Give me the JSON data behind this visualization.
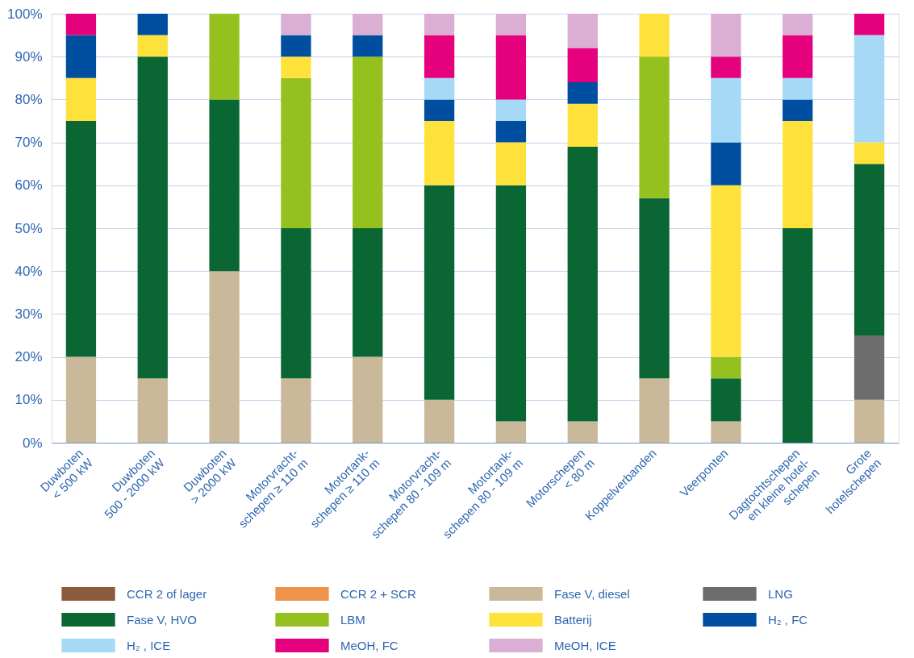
{
  "chart_data": {
    "type": "bar",
    "stacked": true,
    "categories": [
      "Duwboten\n< 500 kW",
      "Duwboten\n500 - 2000 kW",
      "Duwboten\n> 2000 kW",
      "Motorvracht-\nschepen ≥ 110 m",
      "Motortank-\nschepen ≥ 110 m",
      "Motorvracht-\nschepen 80 - 109 m",
      "Motortank-\nschepen 80 - 109 m",
      "Motorschepen\n< 80 m",
      "Koppelverbanden",
      "Veerponten",
      "Dagtochtschepen\nen kleine hotel-\nschepen",
      "Grote\nhotelschepen"
    ],
    "series": [
      {
        "name": "CCR 2 of lager",
        "color": "#8c5a3c",
        "values": [
          0,
          0,
          0,
          0,
          0,
          0,
          0,
          0,
          0,
          0,
          0,
          0
        ]
      },
      {
        "name": "CCR 2 + SCR",
        "color": "#f0944c",
        "values": [
          0,
          0,
          0,
          0,
          0,
          0,
          0,
          0,
          0,
          0,
          0,
          0
        ]
      },
      {
        "name": "Fase V, diesel",
        "color": "#c9b99a",
        "values": [
          20,
          15,
          40,
          15,
          20,
          10,
          5,
          5,
          15,
          5,
          0,
          10
        ]
      },
      {
        "name": "LNG",
        "color": "#6d6d6d",
        "values": [
          0,
          0,
          0,
          0,
          0,
          0,
          0,
          0,
          0,
          0,
          0,
          15
        ]
      },
      {
        "name": "Fase V, HVO",
        "color": "#0a6633",
        "values": [
          55,
          75,
          40,
          35,
          30,
          50,
          55,
          64,
          42,
          10,
          50,
          40
        ]
      },
      {
        "name": "LBM",
        "color": "#95c11f",
        "values": [
          0,
          0,
          20,
          35,
          40,
          0,
          0,
          0,
          33,
          5,
          0,
          0
        ]
      },
      {
        "name": "Batterij",
        "color": "#ffe13c",
        "values": [
          10,
          5,
          0,
          5,
          0,
          15,
          10,
          10,
          10,
          40,
          25,
          5
        ]
      },
      {
        "name": "H₂ , FC",
        "color": "#004ea0",
        "values": [
          10,
          5,
          0,
          5,
          5,
          5,
          5,
          5,
          0,
          10,
          5,
          0
        ]
      },
      {
        "name": "H₂ , ICE",
        "color": "#a5d9f5",
        "values": [
          0,
          0,
          0,
          0,
          0,
          5,
          5,
          0,
          0,
          15,
          5,
          25
        ]
      },
      {
        "name": "MeOH, FC",
        "color": "#e5007d",
        "values": [
          5,
          0,
          0,
          0,
          0,
          10,
          15,
          8,
          0,
          5,
          10,
          5
        ]
      },
      {
        "name": "MeOH, ICE",
        "color": "#dbaed3",
        "values": [
          0,
          0,
          0,
          5,
          5,
          5,
          5,
          8,
          0,
          10,
          5,
          0
        ]
      }
    ],
    "ylim": [
      0,
      100
    ],
    "yticks": [
      {
        "value": 0,
        "label": "0%"
      },
      {
        "value": 10,
        "label": "10%"
      },
      {
        "value": 20,
        "label": "20%"
      },
      {
        "value": 30,
        "label": "30%"
      },
      {
        "value": 40,
        "label": "40%"
      },
      {
        "value": 50,
        "label": "50%"
      },
      {
        "value": 60,
        "label": "60%"
      },
      {
        "value": 70,
        "label": "70%"
      },
      {
        "value": 80,
        "label": "80%"
      },
      {
        "value": 90,
        "label": "90%"
      },
      {
        "value": 100,
        "label": "100%"
      }
    ],
    "grid": "y",
    "legend": "bottom"
  }
}
